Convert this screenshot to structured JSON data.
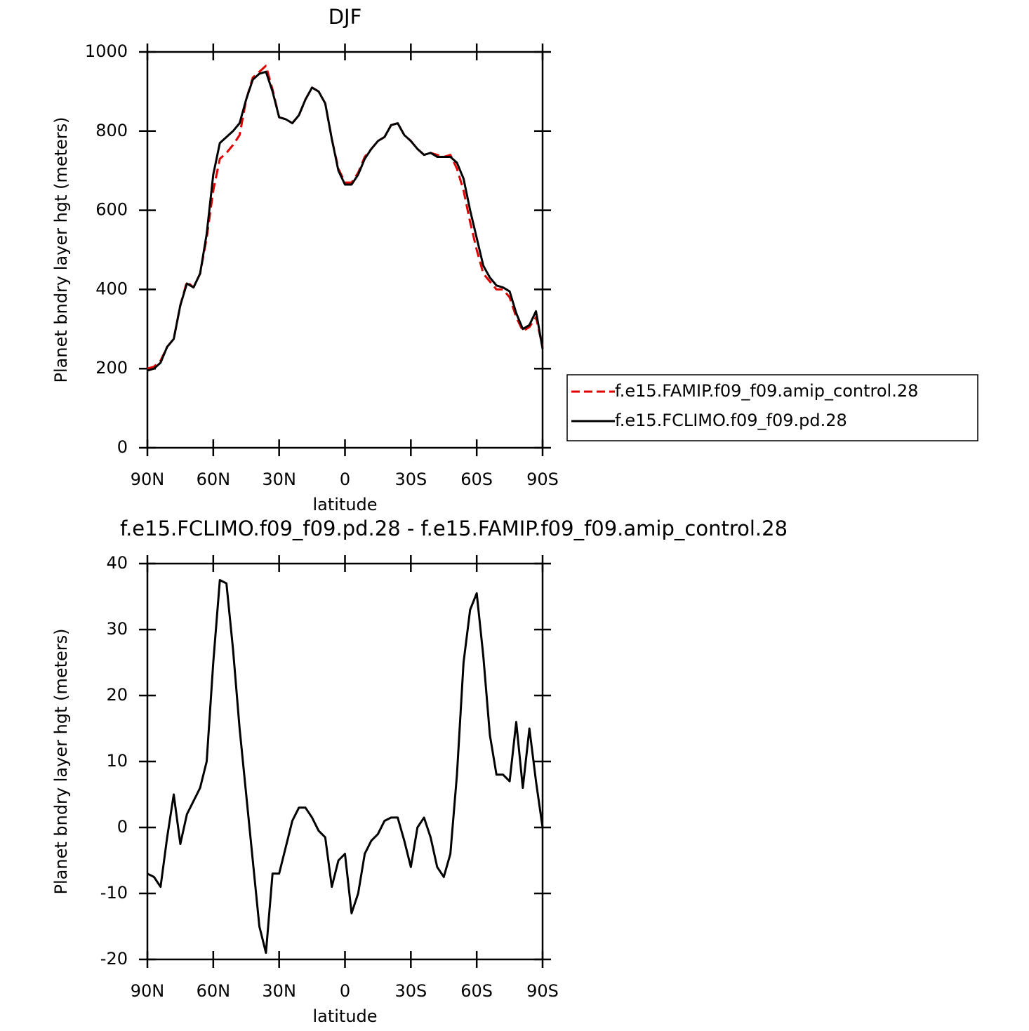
{
  "chart_data": [
    {
      "type": "line",
      "title": "DJF",
      "xlabel": "latitude",
      "ylabel": "Planet bndry layer hgt (meters)",
      "x": [
        90,
        87,
        84,
        81,
        78,
        75,
        72,
        69,
        66,
        63,
        60,
        57,
        54,
        51,
        48,
        45,
        42,
        39,
        36,
        33,
        30,
        27,
        24,
        21,
        18,
        15,
        12,
        9,
        6,
        3,
        0,
        -3,
        -6,
        -9,
        -12,
        -15,
        -18,
        -21,
        -24,
        -27,
        -30,
        -33,
        -36,
        -39,
        -42,
        -45,
        -48,
        -51,
        -54,
        -57,
        -60,
        -63,
        -66,
        -69,
        -72,
        -75,
        -78,
        -81,
        -84,
        -87,
        -90
      ],
      "series": [
        {
          "name": "f.e15.FAMIP.f09_f09.amip_control.28",
          "color": "#e00000",
          "dashed": true,
          "values": [
            200,
            205,
            220,
            255,
            275,
            360,
            420,
            405,
            440,
            530,
            650,
            730,
            745,
            765,
            790,
            880,
            935,
            950,
            965,
            905,
            835,
            830,
            820,
            840,
            880,
            910,
            900,
            870,
            780,
            705,
            670,
            670,
            695,
            735,
            755,
            775,
            785,
            815,
            820,
            790,
            775,
            755,
            740,
            745,
            740,
            735,
            740,
            705,
            650,
            570,
            500,
            440,
            420,
            400,
            400,
            380,
            330,
            295,
            305,
            330,
            255
          ]
        },
        {
          "name": "f.e15.FCLIMO.f09_f09.pd.28",
          "color": "#000000",
          "dashed": false,
          "values": [
            195,
            200,
            215,
            255,
            275,
            360,
            415,
            405,
            440,
            540,
            690,
            770,
            785,
            800,
            820,
            880,
            930,
            945,
            950,
            900,
            835,
            830,
            820,
            840,
            880,
            910,
            900,
            870,
            780,
            700,
            665,
            665,
            690,
            730,
            755,
            775,
            785,
            815,
            820,
            790,
            775,
            755,
            740,
            745,
            735,
            735,
            735,
            720,
            680,
            600,
            530,
            460,
            430,
            410,
            405,
            395,
            340,
            300,
            310,
            345,
            250
          ]
        }
      ],
      "xlim": [
        90,
        -90
      ],
      "xticks": [
        {
          "value": 90,
          "label": "90N"
        },
        {
          "value": 60,
          "label": "60N"
        },
        {
          "value": 30,
          "label": "30N"
        },
        0,
        {
          "value": -30,
          "label": "30S"
        },
        {
          "value": -60,
          "label": "60S"
        },
        {
          "value": -90,
          "label": "90S"
        }
      ],
      "ylim": [
        0,
        1000
      ],
      "yticks": [
        0,
        200,
        400,
        600,
        800,
        1000
      ],
      "legend": "right"
    },
    {
      "type": "line",
      "title": "f.e15.FCLIMO.f09_f09.pd.28 - f.e15.FAMIP.f09_f09.amip_control.28",
      "xlabel": "latitude",
      "ylabel": "Planet bndry layer hgt (meters)",
      "x": [
        90,
        87,
        84,
        81,
        78,
        75,
        72,
        69,
        66,
        63,
        60,
        57,
        54,
        51,
        48,
        45,
        42,
        39,
        36,
        33,
        30,
        27,
        24,
        21,
        18,
        15,
        12,
        9,
        6,
        3,
        0,
        -3,
        -6,
        -9,
        -12,
        -15,
        -18,
        -21,
        -24,
        -27,
        -30,
        -33,
        -36,
        -39,
        -42,
        -45,
        -48,
        -51,
        -54,
        -57,
        -60,
        -63,
        -66,
        -69,
        -72,
        -75,
        -78,
        -81,
        -84,
        -87,
        -90
      ],
      "series": [
        {
          "color": "#000000",
          "dashed": false,
          "values": [
            -7,
            -7.5,
            -9,
            -1.5,
            5,
            -2.5,
            2,
            4,
            6,
            10,
            25,
            37.5,
            37,
            27,
            15,
            5,
            -5,
            -15,
            -19,
            -7,
            -7,
            -3,
            1,
            3,
            3,
            1.5,
            -0.5,
            -1.5,
            -9,
            -5,
            -4,
            -13,
            -10,
            -4,
            -2,
            -1,
            1,
            1.5,
            1.5,
            -2,
            -6,
            0,
            1.5,
            -1.5,
            -6,
            -7.5,
            -4,
            8,
            25,
            33,
            35.5,
            26,
            14,
            8,
            8,
            7,
            16,
            6,
            15,
            7,
            0
          ]
        }
      ],
      "xlim": [
        90,
        -90
      ],
      "xticks": [
        {
          "value": 90,
          "label": "90N"
        },
        {
          "value": 60,
          "label": "60N"
        },
        {
          "value": 30,
          "label": "30N"
        },
        0,
        {
          "value": -30,
          "label": "30S"
        },
        {
          "value": -60,
          "label": "60S"
        },
        {
          "value": -90,
          "label": "90S"
        }
      ],
      "ylim": [
        -20,
        40
      ],
      "yticks": [
        -20,
        -10,
        0,
        10,
        20,
        30,
        40
      ]
    }
  ]
}
